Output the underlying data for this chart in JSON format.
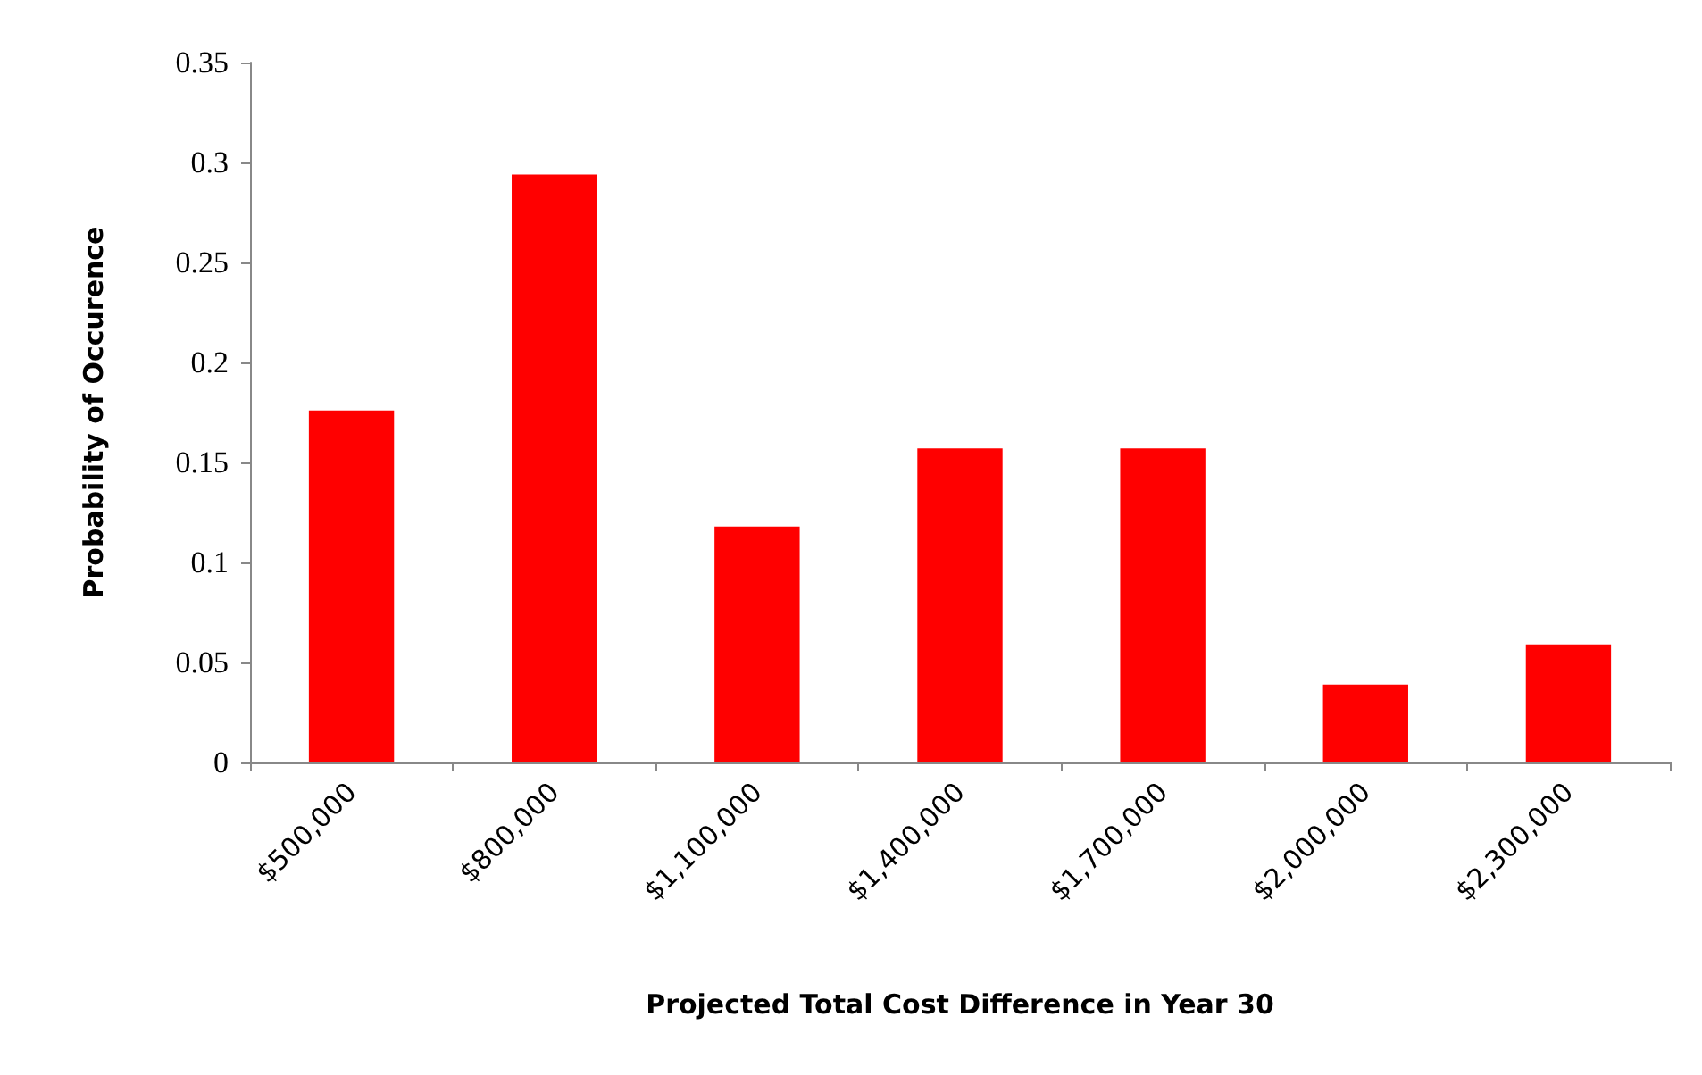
{
  "chart_data": {
    "type": "bar",
    "xlabel": "Projected Total Cost Difference in Year 30",
    "ylabel": "Probability of Occurence",
    "categories": [
      "$500,000",
      "$800,000",
      "$1,100,000",
      "$1,400,000",
      "$1,700,000",
      "$2,000,000",
      "$2,300,000"
    ],
    "values": [
      0.176,
      0.294,
      0.118,
      0.157,
      0.157,
      0.039,
      0.059
    ],
    "color": "#ff0000",
    "ylim": [
      0,
      0.35
    ],
    "yticks": [
      0,
      0.05,
      0.1,
      0.15,
      0.2,
      0.25,
      0.3,
      0.35
    ],
    "grid": false
  }
}
